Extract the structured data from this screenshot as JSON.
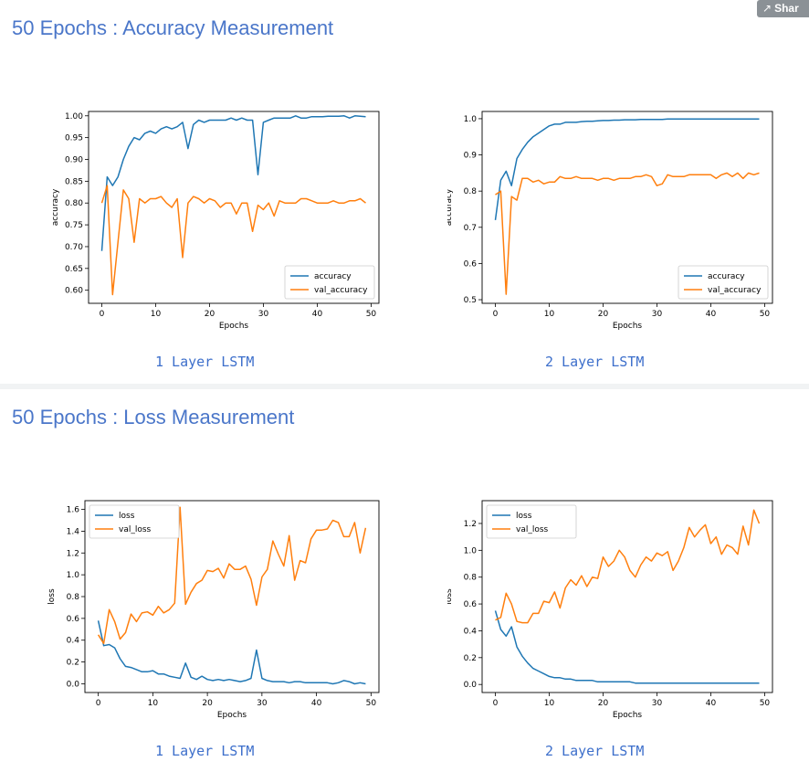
{
  "share_button": {
    "label": "Shar",
    "icon": "share-icon"
  },
  "sections": [
    {
      "title": "50 Epochs : Accuracy Measurement"
    },
    {
      "title": "50 Epochs : Loss Measurement"
    }
  ],
  "colors": {
    "train": "#1f77b4",
    "val": "#ff7f0e",
    "heading": "#4a76c9"
  },
  "chart_data": [
    {
      "type": "line",
      "caption": "1 Layer LSTM",
      "xlabel": "Epochs",
      "ylabel": "accuracy",
      "xlim": [
        -2.45,
        51.45
      ],
      "ylim": [
        0.57,
        1.01
      ],
      "xticks": [
        0,
        10,
        20,
        30,
        40,
        50
      ],
      "yticks": [
        0.6,
        0.65,
        0.7,
        0.75,
        0.8,
        0.85,
        0.9,
        0.95,
        1.0
      ],
      "ytick_decimals": 2,
      "legend": "lower-right",
      "x": [
        0,
        1,
        2,
        3,
        4,
        5,
        6,
        7,
        8,
        9,
        10,
        11,
        12,
        13,
        14,
        15,
        16,
        17,
        18,
        19,
        20,
        21,
        22,
        23,
        24,
        25,
        26,
        27,
        28,
        29,
        30,
        31,
        32,
        33,
        34,
        35,
        36,
        37,
        38,
        39,
        40,
        41,
        42,
        43,
        44,
        45,
        46,
        47,
        48,
        49
      ],
      "series": [
        {
          "name": "accuracy",
          "values": [
            0.69,
            0.86,
            0.84,
            0.86,
            0.9,
            0.93,
            0.95,
            0.945,
            0.96,
            0.965,
            0.96,
            0.97,
            0.975,
            0.97,
            0.975,
            0.985,
            0.925,
            0.98,
            0.99,
            0.985,
            0.99,
            0.99,
            0.99,
            0.99,
            0.995,
            0.99,
            0.995,
            0.99,
            0.99,
            0.865,
            0.985,
            0.99,
            0.995,
            0.995,
            0.995,
            0.995,
            1.0,
            0.995,
            0.995,
            0.998,
            0.998,
            0.998,
            0.999,
            0.999,
            0.999,
            1.0,
            0.995,
            1.0,
            0.999,
            0.998
          ]
        },
        {
          "name": "val_accuracy",
          "values": [
            0.8,
            0.84,
            0.59,
            0.71,
            0.83,
            0.81,
            0.71,
            0.81,
            0.8,
            0.81,
            0.81,
            0.815,
            0.8,
            0.79,
            0.81,
            0.675,
            0.8,
            0.815,
            0.81,
            0.8,
            0.81,
            0.805,
            0.79,
            0.8,
            0.8,
            0.775,
            0.8,
            0.8,
            0.735,
            0.795,
            0.785,
            0.8,
            0.77,
            0.805,
            0.8,
            0.8,
            0.8,
            0.81,
            0.81,
            0.805,
            0.8,
            0.8,
            0.8,
            0.805,
            0.8,
            0.8,
            0.805,
            0.805,
            0.81,
            0.8
          ]
        }
      ]
    },
    {
      "type": "line",
      "caption": "2 Layer LSTM",
      "xlabel": "Epochs",
      "ylabel": "accuracy",
      "xlim": [
        -2.45,
        51.45
      ],
      "ylim": [
        0.49,
        1.02
      ],
      "xticks": [
        0,
        10,
        20,
        30,
        40,
        50
      ],
      "yticks": [
        0.5,
        0.6,
        0.7,
        0.8,
        0.9,
        1.0
      ],
      "ytick_decimals": 1,
      "legend": "lower-right",
      "x": [
        0,
        1,
        2,
        3,
        4,
        5,
        6,
        7,
        8,
        9,
        10,
        11,
        12,
        13,
        14,
        15,
        16,
        17,
        18,
        19,
        20,
        21,
        22,
        23,
        24,
        25,
        26,
        27,
        28,
        29,
        30,
        31,
        32,
        33,
        34,
        35,
        36,
        37,
        38,
        39,
        40,
        41,
        42,
        43,
        44,
        45,
        46,
        47,
        48,
        49
      ],
      "series": [
        {
          "name": "accuracy",
          "values": [
            0.72,
            0.83,
            0.855,
            0.815,
            0.89,
            0.915,
            0.935,
            0.95,
            0.96,
            0.97,
            0.98,
            0.985,
            0.985,
            0.99,
            0.99,
            0.99,
            0.992,
            0.993,
            0.993,
            0.994,
            0.995,
            0.995,
            0.996,
            0.996,
            0.997,
            0.997,
            0.997,
            0.998,
            0.998,
            0.998,
            0.998,
            0.998,
            0.999,
            0.999,
            0.999,
            0.999,
            0.999,
            0.999,
            0.999,
            0.999,
            0.999,
            0.999,
            0.999,
            0.999,
            0.999,
            0.999,
            0.999,
            0.999,
            0.999,
            0.999
          ]
        },
        {
          "name": "val_accuracy",
          "values": [
            0.79,
            0.8,
            0.515,
            0.785,
            0.775,
            0.835,
            0.835,
            0.825,
            0.83,
            0.82,
            0.825,
            0.825,
            0.84,
            0.835,
            0.835,
            0.84,
            0.835,
            0.835,
            0.835,
            0.83,
            0.835,
            0.835,
            0.83,
            0.835,
            0.835,
            0.835,
            0.84,
            0.84,
            0.845,
            0.84,
            0.815,
            0.82,
            0.845,
            0.84,
            0.84,
            0.84,
            0.845,
            0.845,
            0.845,
            0.845,
            0.845,
            0.835,
            0.845,
            0.85,
            0.84,
            0.85,
            0.835,
            0.85,
            0.845,
            0.85
          ]
        }
      ]
    },
    {
      "type": "line",
      "caption": "1 Layer LSTM",
      "xlabel": "Epochs",
      "ylabel": "loss",
      "xlim": [
        -2.45,
        51.45
      ],
      "ylim": [
        -0.08,
        1.68
      ],
      "xticks": [
        0,
        10,
        20,
        30,
        40,
        50
      ],
      "yticks": [
        0.0,
        0.2,
        0.4,
        0.6,
        0.8,
        1.0,
        1.2,
        1.4,
        1.6
      ],
      "ytick_decimals": 1,
      "legend": "upper-left",
      "x": [
        0,
        1,
        2,
        3,
        4,
        5,
        6,
        7,
        8,
        9,
        10,
        11,
        12,
        13,
        14,
        15,
        16,
        17,
        18,
        19,
        20,
        21,
        22,
        23,
        24,
        25,
        26,
        27,
        28,
        29,
        30,
        31,
        32,
        33,
        34,
        35,
        36,
        37,
        38,
        39,
        40,
        41,
        42,
        43,
        44,
        45,
        46,
        47,
        48,
        49
      ],
      "series": [
        {
          "name": "loss",
          "values": [
            0.58,
            0.35,
            0.36,
            0.33,
            0.23,
            0.16,
            0.15,
            0.13,
            0.11,
            0.11,
            0.12,
            0.09,
            0.09,
            0.07,
            0.06,
            0.05,
            0.19,
            0.06,
            0.04,
            0.07,
            0.04,
            0.03,
            0.04,
            0.03,
            0.04,
            0.03,
            0.02,
            0.03,
            0.05,
            0.31,
            0.05,
            0.03,
            0.02,
            0.02,
            0.02,
            0.01,
            0.02,
            0.02,
            0.01,
            0.01,
            0.01,
            0.01,
            0.01,
            0.0,
            0.01,
            0.03,
            0.02,
            0.0,
            0.01,
            0.0
          ]
        },
        {
          "name": "val_loss",
          "values": [
            0.45,
            0.37,
            0.68,
            0.57,
            0.41,
            0.47,
            0.64,
            0.57,
            0.65,
            0.66,
            0.63,
            0.71,
            0.65,
            0.68,
            0.74,
            1.62,
            0.73,
            0.84,
            0.92,
            0.95,
            1.04,
            1.03,
            1.06,
            0.97,
            1.1,
            1.05,
            1.05,
            1.08,
            0.96,
            0.72,
            0.98,
            1.05,
            1.31,
            1.19,
            1.08,
            1.36,
            0.95,
            1.13,
            1.11,
            1.33,
            1.41,
            1.41,
            1.42,
            1.5,
            1.48,
            1.35,
            1.35,
            1.48,
            1.2,
            1.43
          ]
        }
      ]
    },
    {
      "type": "line",
      "caption": "2 Layer LSTM",
      "xlabel": "Epochs",
      "ylabel": "loss",
      "xlim": [
        -2.45,
        51.45
      ],
      "ylim": [
        -0.06,
        1.37
      ],
      "xticks": [
        0,
        10,
        20,
        30,
        40,
        50
      ],
      "yticks": [
        0.0,
        0.2,
        0.4,
        0.6,
        0.8,
        1.0,
        1.2
      ],
      "ytick_decimals": 1,
      "legend": "upper-left",
      "x": [
        0,
        1,
        2,
        3,
        4,
        5,
        6,
        7,
        8,
        9,
        10,
        11,
        12,
        13,
        14,
        15,
        16,
        17,
        18,
        19,
        20,
        21,
        22,
        23,
        24,
        25,
        26,
        27,
        28,
        29,
        30,
        31,
        32,
        33,
        34,
        35,
        36,
        37,
        38,
        39,
        40,
        41,
        42,
        43,
        44,
        45,
        46,
        47,
        48,
        49
      ],
      "series": [
        {
          "name": "loss",
          "values": [
            0.55,
            0.41,
            0.36,
            0.43,
            0.28,
            0.21,
            0.16,
            0.12,
            0.1,
            0.08,
            0.06,
            0.05,
            0.05,
            0.04,
            0.04,
            0.03,
            0.03,
            0.03,
            0.03,
            0.02,
            0.02,
            0.02,
            0.02,
            0.02,
            0.02,
            0.02,
            0.01,
            0.01,
            0.01,
            0.01,
            0.01,
            0.01,
            0.01,
            0.01,
            0.01,
            0.01,
            0.01,
            0.01,
            0.01,
            0.01,
            0.01,
            0.01,
            0.01,
            0.01,
            0.01,
            0.01,
            0.01,
            0.01,
            0.01,
            0.01
          ]
        },
        {
          "name": "val_loss",
          "values": [
            0.48,
            0.5,
            0.68,
            0.6,
            0.47,
            0.46,
            0.46,
            0.53,
            0.53,
            0.62,
            0.61,
            0.69,
            0.57,
            0.72,
            0.78,
            0.74,
            0.81,
            0.73,
            0.8,
            0.79,
            0.95,
            0.88,
            0.92,
            1.0,
            0.95,
            0.85,
            0.8,
            0.89,
            0.95,
            0.92,
            0.98,
            0.96,
            0.99,
            0.85,
            0.92,
            1.02,
            1.17,
            1.1,
            1.15,
            1.19,
            1.05,
            1.1,
            0.97,
            1.04,
            1.02,
            0.97,
            1.18,
            1.04,
            1.3,
            1.2
          ]
        }
      ]
    }
  ]
}
